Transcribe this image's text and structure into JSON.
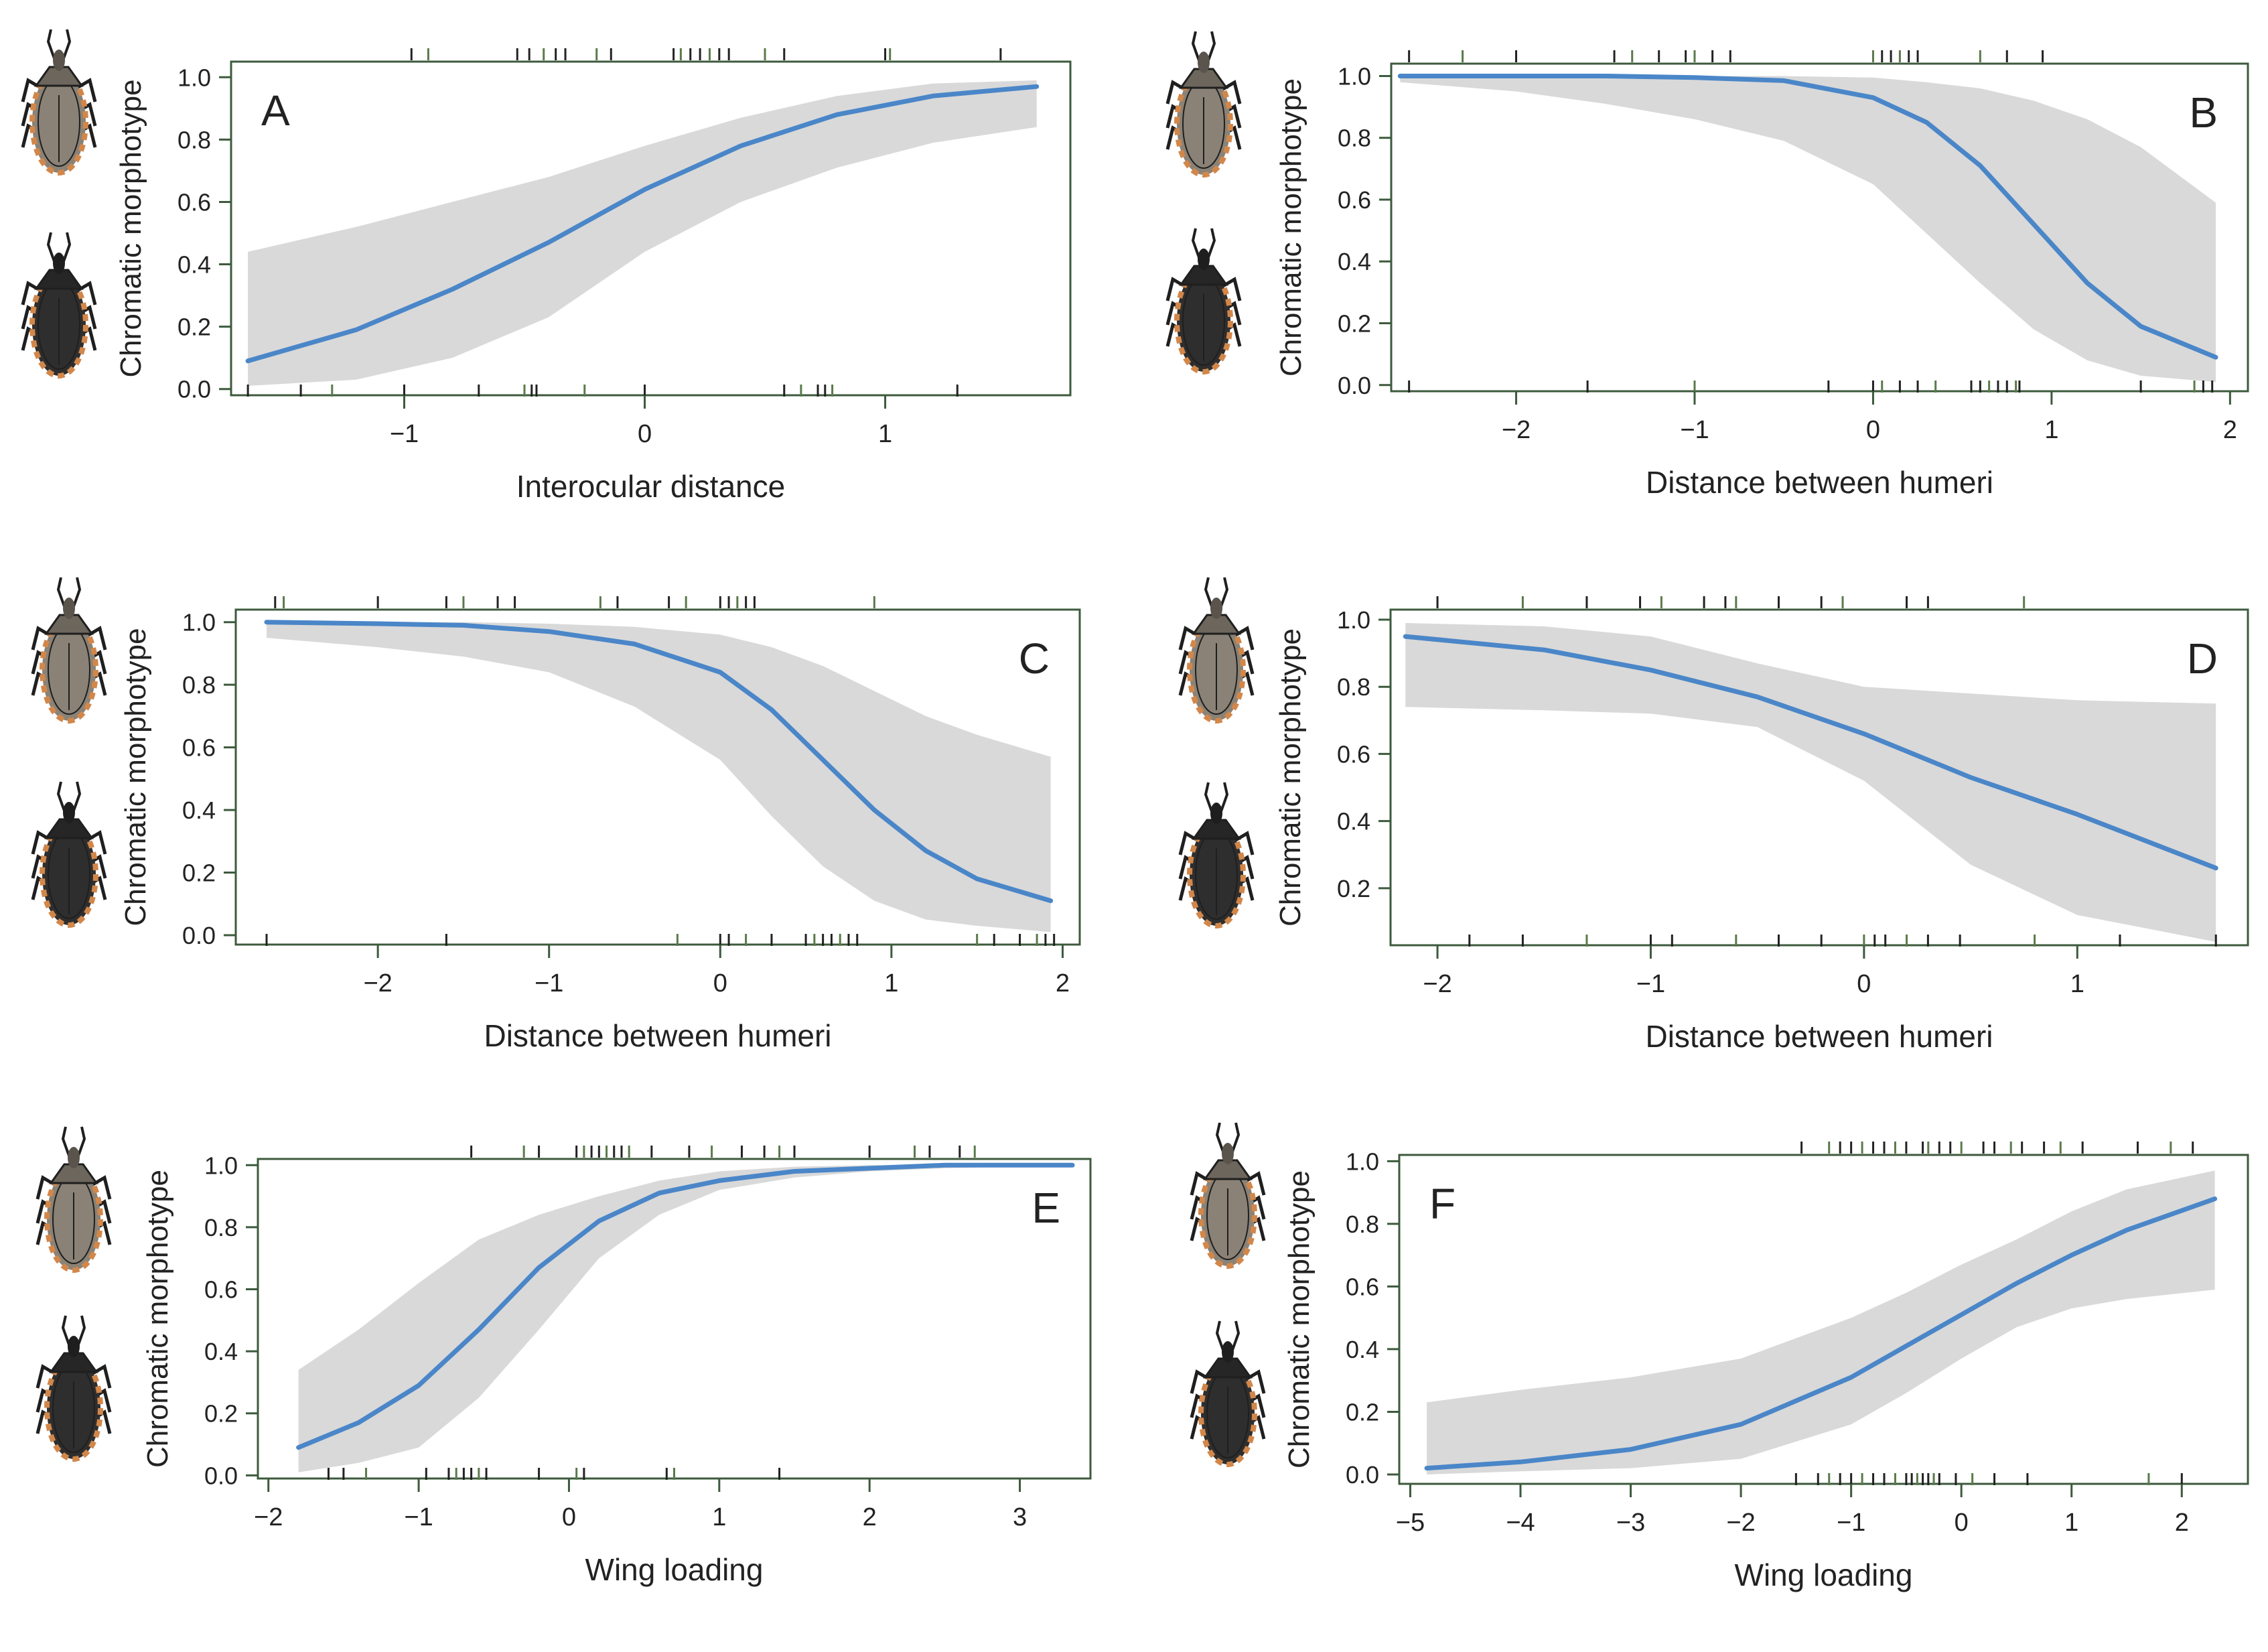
{
  "colors": {
    "curve": "#4a86c8",
    "band": "#d9d9d9",
    "axis": "#3d5a3d",
    "rug_dark": "#222222",
    "rug_green": "#5a7a4a",
    "bug_light": "#8a8276",
    "bug_dark": "#2e2e2e",
    "bug_rim": "#d2874a"
  },
  "icons": {
    "top": "light-morph-bug-icon",
    "bottom": "dark-morph-bug-icon"
  },
  "chart_data": [
    {
      "type": "line",
      "panel": "A",
      "xlabel": "Interocular distance",
      "ylabel": "Chromatic morphotype",
      "xlim": [
        -1.72,
        1.77
      ],
      "ylim": [
        -0.02,
        1.05
      ],
      "xticks": [
        -1,
        0,
        1
      ],
      "xtick_labels": [
        "−1",
        "0",
        "1"
      ],
      "yticks": [
        0,
        0.2,
        0.4,
        0.6,
        0.8,
        1
      ],
      "ytick_labels": [
        "0.0",
        "0.2",
        "0.4",
        "0.6",
        "0.8",
        "1.0"
      ],
      "grid": false,
      "x": [
        -1.65,
        -1.2,
        -0.8,
        -0.4,
        0.0,
        0.4,
        0.8,
        1.2,
        1.63
      ],
      "y": [
        0.09,
        0.19,
        0.32,
        0.47,
        0.64,
        0.78,
        0.88,
        0.94,
        0.97
      ],
      "lower": [
        0.01,
        0.03,
        0.1,
        0.23,
        0.44,
        0.6,
        0.71,
        0.79,
        0.84
      ],
      "upper": [
        0.44,
        0.52,
        0.6,
        0.68,
        0.78,
        0.87,
        0.94,
        0.98,
        0.99
      ],
      "rug_top": [
        -0.97,
        -0.9,
        -0.53,
        -0.48,
        -0.42,
        -0.37,
        -0.33,
        -0.2,
        -0.14,
        0.12,
        0.15,
        0.19,
        0.23,
        0.27,
        0.31,
        0.35,
        0.5,
        0.58,
        1.0,
        1.02,
        1.48
      ],
      "rug_bottom": [
        -1.65,
        -1.43,
        -1.3,
        -1.0,
        -0.69,
        -0.5,
        -0.47,
        -0.45,
        -0.25,
        0.0,
        0.58,
        0.65,
        0.72,
        0.75,
        0.78,
        1.3
      ]
    },
    {
      "type": "line",
      "panel": "B",
      "xlabel": "Distance between humeri",
      "ylabel": "Chromatic morphotype",
      "xlim": [
        -2.7,
        2.1
      ],
      "ylim": [
        -0.02,
        1.04
      ],
      "xticks": [
        -2,
        -1,
        0,
        1,
        2
      ],
      "xtick_labels": [
        "−2",
        "−1",
        "0",
        "1",
        "2"
      ],
      "yticks": [
        0,
        0.2,
        0.4,
        0.6,
        0.8,
        1
      ],
      "ytick_labels": [
        "0.0",
        "0.2",
        "0.4",
        "0.6",
        "0.8",
        "1.0"
      ],
      "grid": false,
      "x": [
        -2.65,
        -2.0,
        -1.5,
        -1.0,
        -0.5,
        0.0,
        0.3,
        0.6,
        0.9,
        1.2,
        1.5,
        1.92
      ],
      "y": [
        1.0,
        1.0,
        1.0,
        0.995,
        0.985,
        0.93,
        0.85,
        0.71,
        0.52,
        0.33,
        0.19,
        0.09
      ],
      "lower": [
        0.98,
        0.95,
        0.91,
        0.86,
        0.79,
        0.65,
        0.49,
        0.33,
        0.18,
        0.08,
        0.03,
        0.01
      ],
      "upper": [
        1.0,
        1.0,
        1.0,
        1.0,
        1.0,
        0.995,
        0.98,
        0.96,
        0.92,
        0.86,
        0.77,
        0.59
      ],
      "rug_top": [
        -2.6,
        -2.3,
        -2.0,
        -1.45,
        -1.35,
        -1.2,
        -1.05,
        -1.0,
        -0.9,
        -0.8,
        0.0,
        0.05,
        0.1,
        0.15,
        0.2,
        0.25,
        0.6,
        0.75,
        0.95
      ],
      "rug_bottom": [
        -2.6,
        -1.6,
        -1.0,
        -0.25,
        0.0,
        0.05,
        0.15,
        0.25,
        0.35,
        0.55,
        0.6,
        0.65,
        0.7,
        0.75,
        0.8,
        0.82,
        1.5,
        1.8,
        1.85,
        1.9
      ]
    },
    {
      "type": "line",
      "panel": "C",
      "xlabel": "Distance between humeri",
      "ylabel": "Chromatic morphotype",
      "xlim": [
        -2.83,
        2.1
      ],
      "ylim": [
        -0.03,
        1.04
      ],
      "xticks": [
        -2,
        -1,
        0,
        1,
        2
      ],
      "xtick_labels": [
        "−2",
        "−1",
        "0",
        "1",
        "2"
      ],
      "yticks": [
        0,
        0.2,
        0.4,
        0.6,
        0.8,
        1
      ],
      "ytick_labels": [
        "0.0",
        "0.2",
        "0.4",
        "0.6",
        "0.8",
        "1.0"
      ],
      "grid": false,
      "x": [
        -2.65,
        -2.0,
        -1.5,
        -1.0,
        -0.5,
        0.0,
        0.3,
        0.6,
        0.9,
        1.2,
        1.5,
        1.93
      ],
      "y": [
        1.0,
        0.995,
        0.99,
        0.97,
        0.93,
        0.84,
        0.72,
        0.56,
        0.4,
        0.27,
        0.18,
        0.11
      ],
      "lower": [
        0.95,
        0.92,
        0.89,
        0.84,
        0.73,
        0.56,
        0.38,
        0.22,
        0.11,
        0.05,
        0.03,
        0.01
      ],
      "upper": [
        1.0,
        1.0,
        1.0,
        0.995,
        0.985,
        0.96,
        0.92,
        0.86,
        0.78,
        0.7,
        0.64,
        0.57
      ],
      "rug_top": [
        -2.6,
        -2.55,
        -2.0,
        -1.6,
        -1.5,
        -1.3,
        -1.2,
        -0.7,
        -0.6,
        -0.3,
        -0.2,
        0.0,
        0.05,
        0.1,
        0.15,
        0.2,
        0.9
      ],
      "rug_bottom": [
        -2.65,
        -1.6,
        -0.25,
        0.0,
        0.05,
        0.15,
        0.3,
        0.5,
        0.55,
        0.6,
        0.65,
        0.7,
        0.75,
        0.8,
        1.5,
        1.6,
        1.75,
        1.85,
        1.9,
        1.95
      ]
    },
    {
      "type": "line",
      "panel": "D",
      "xlabel": "Distance between humeri",
      "ylabel": "Chromatic morphotype",
      "xlim": [
        -2.22,
        1.8
      ],
      "ylim": [
        0.03,
        1.03
      ],
      "xticks": [
        -2,
        -1,
        0,
        1
      ],
      "xtick_labels": [
        "−2",
        "−1",
        "0",
        "1"
      ],
      "yticks": [
        0.2,
        0.4,
        0.6,
        0.8,
        1
      ],
      "ytick_labels": [
        "0.2",
        "0.4",
        "0.6",
        "0.8",
        "1.0"
      ],
      "grid": false,
      "x": [
        -2.15,
        -1.5,
        -1.0,
        -0.5,
        0.0,
        0.5,
        1.0,
        1.65
      ],
      "y": [
        0.95,
        0.91,
        0.85,
        0.77,
        0.66,
        0.53,
        0.42,
        0.26
      ],
      "lower": [
        0.74,
        0.73,
        0.72,
        0.68,
        0.52,
        0.27,
        0.12,
        0.04
      ],
      "upper": [
        0.99,
        0.98,
        0.95,
        0.87,
        0.8,
        0.78,
        0.76,
        0.75
      ],
      "rug_top": [
        -2.0,
        -1.6,
        -1.3,
        -1.05,
        -0.95,
        -0.75,
        -0.65,
        -0.6,
        -0.4,
        -0.2,
        -0.1,
        0.2,
        0.3,
        0.75
      ],
      "rug_bottom": [
        -1.85,
        -1.6,
        -1.3,
        -1.0,
        -0.9,
        -0.6,
        -0.4,
        -0.2,
        0.0,
        0.05,
        0.1,
        0.2,
        0.3,
        0.45,
        0.8,
        1.2,
        1.65
      ]
    },
    {
      "type": "line",
      "panel": "E",
      "xlabel": "Wing loading",
      "ylabel": "Chromatic morphotype",
      "xlim": [
        -2.07,
        3.47
      ],
      "ylim": [
        -0.01,
        1.02
      ],
      "xticks": [
        -2,
        -1,
        0,
        1,
        2,
        3
      ],
      "xtick_labels": [
        "−2",
        "−1",
        "0",
        "1",
        "2",
        "3"
      ],
      "yticks": [
        0,
        0.2,
        0.4,
        0.6,
        0.8,
        1
      ],
      "ytick_labels": [
        "0.0",
        "0.2",
        "0.4",
        "0.6",
        "0.8",
        "1.0"
      ],
      "grid": false,
      "x": [
        -1.8,
        -1.4,
        -1.0,
        -0.6,
        -0.2,
        0.2,
        0.6,
        1.0,
        1.5,
        2.0,
        2.5,
        3.35
      ],
      "y": [
        0.09,
        0.17,
        0.29,
        0.47,
        0.67,
        0.82,
        0.91,
        0.95,
        0.98,
        0.99,
        1.0,
        1.0
      ],
      "lower": [
        0.01,
        0.04,
        0.09,
        0.25,
        0.47,
        0.7,
        0.84,
        0.92,
        0.96,
        0.98,
        0.99,
        1.0
      ],
      "upper": [
        0.34,
        0.47,
        0.62,
        0.76,
        0.84,
        0.9,
        0.95,
        0.98,
        0.995,
        1.0,
        1.0,
        1.0
      ],
      "rug_top": [
        -0.65,
        -0.3,
        -0.2,
        0.05,
        0.1,
        0.15,
        0.2,
        0.25,
        0.3,
        0.35,
        0.4,
        0.55,
        0.8,
        0.95,
        1.15,
        1.3,
        1.4,
        1.5,
        2.0,
        2.3,
        2.4,
        2.6,
        2.7
      ],
      "rug_bottom": [
        -1.6,
        -1.5,
        -1.35,
        -0.95,
        -0.8,
        -0.75,
        -0.7,
        -0.65,
        -0.6,
        -0.55,
        -0.2,
        0.05,
        0.1,
        0.65,
        0.7,
        1.4
      ]
    },
    {
      "type": "line",
      "panel": "F",
      "xlabel": "Wing loading",
      "ylabel": "Chromatic morphotype",
      "xlim": [
        -5.1,
        2.6
      ],
      "ylim": [
        -0.03,
        1.02
      ],
      "xticks": [
        -5,
        -4,
        -3,
        -2,
        -1,
        0,
        1,
        2
      ],
      "xtick_labels": [
        "−5",
        "−4",
        "−3",
        "−2",
        "−1",
        "0",
        "1",
        "2"
      ],
      "yticks": [
        0,
        0.2,
        0.4,
        0.6,
        0.8,
        1
      ],
      "ytick_labels": [
        "0.0",
        "0.2",
        "0.4",
        "0.6",
        "0.8",
        "1.0"
      ],
      "grid": false,
      "x": [
        -4.85,
        -4.0,
        -3.0,
        -2.0,
        -1.0,
        -0.5,
        0.0,
        0.5,
        1.0,
        1.5,
        2.3
      ],
      "y": [
        0.02,
        0.04,
        0.08,
        0.16,
        0.31,
        0.41,
        0.51,
        0.61,
        0.7,
        0.78,
        0.88
      ],
      "lower": [
        0.0,
        0.01,
        0.02,
        0.05,
        0.16,
        0.26,
        0.37,
        0.47,
        0.53,
        0.56,
        0.59
      ],
      "upper": [
        0.23,
        0.27,
        0.31,
        0.37,
        0.5,
        0.58,
        0.67,
        0.75,
        0.84,
        0.91,
        0.97
      ],
      "rug_top": [
        -1.45,
        -1.2,
        -1.1,
        -1.0,
        -0.9,
        -0.8,
        -0.7,
        -0.6,
        -0.5,
        -0.35,
        -0.3,
        -0.2,
        -0.1,
        0.0,
        0.2,
        0.3,
        0.45,
        0.55,
        0.75,
        0.9,
        1.1,
        1.6,
        1.9,
        2.1
      ],
      "rug_bottom": [
        -1.5,
        -1.3,
        -1.2,
        -1.1,
        -1.0,
        -0.9,
        -0.8,
        -0.7,
        -0.6,
        -0.5,
        -0.45,
        -0.4,
        -0.35,
        -0.3,
        -0.25,
        -0.2,
        -0.05,
        0.1,
        0.3,
        0.6,
        1.7,
        2.0
      ]
    }
  ]
}
